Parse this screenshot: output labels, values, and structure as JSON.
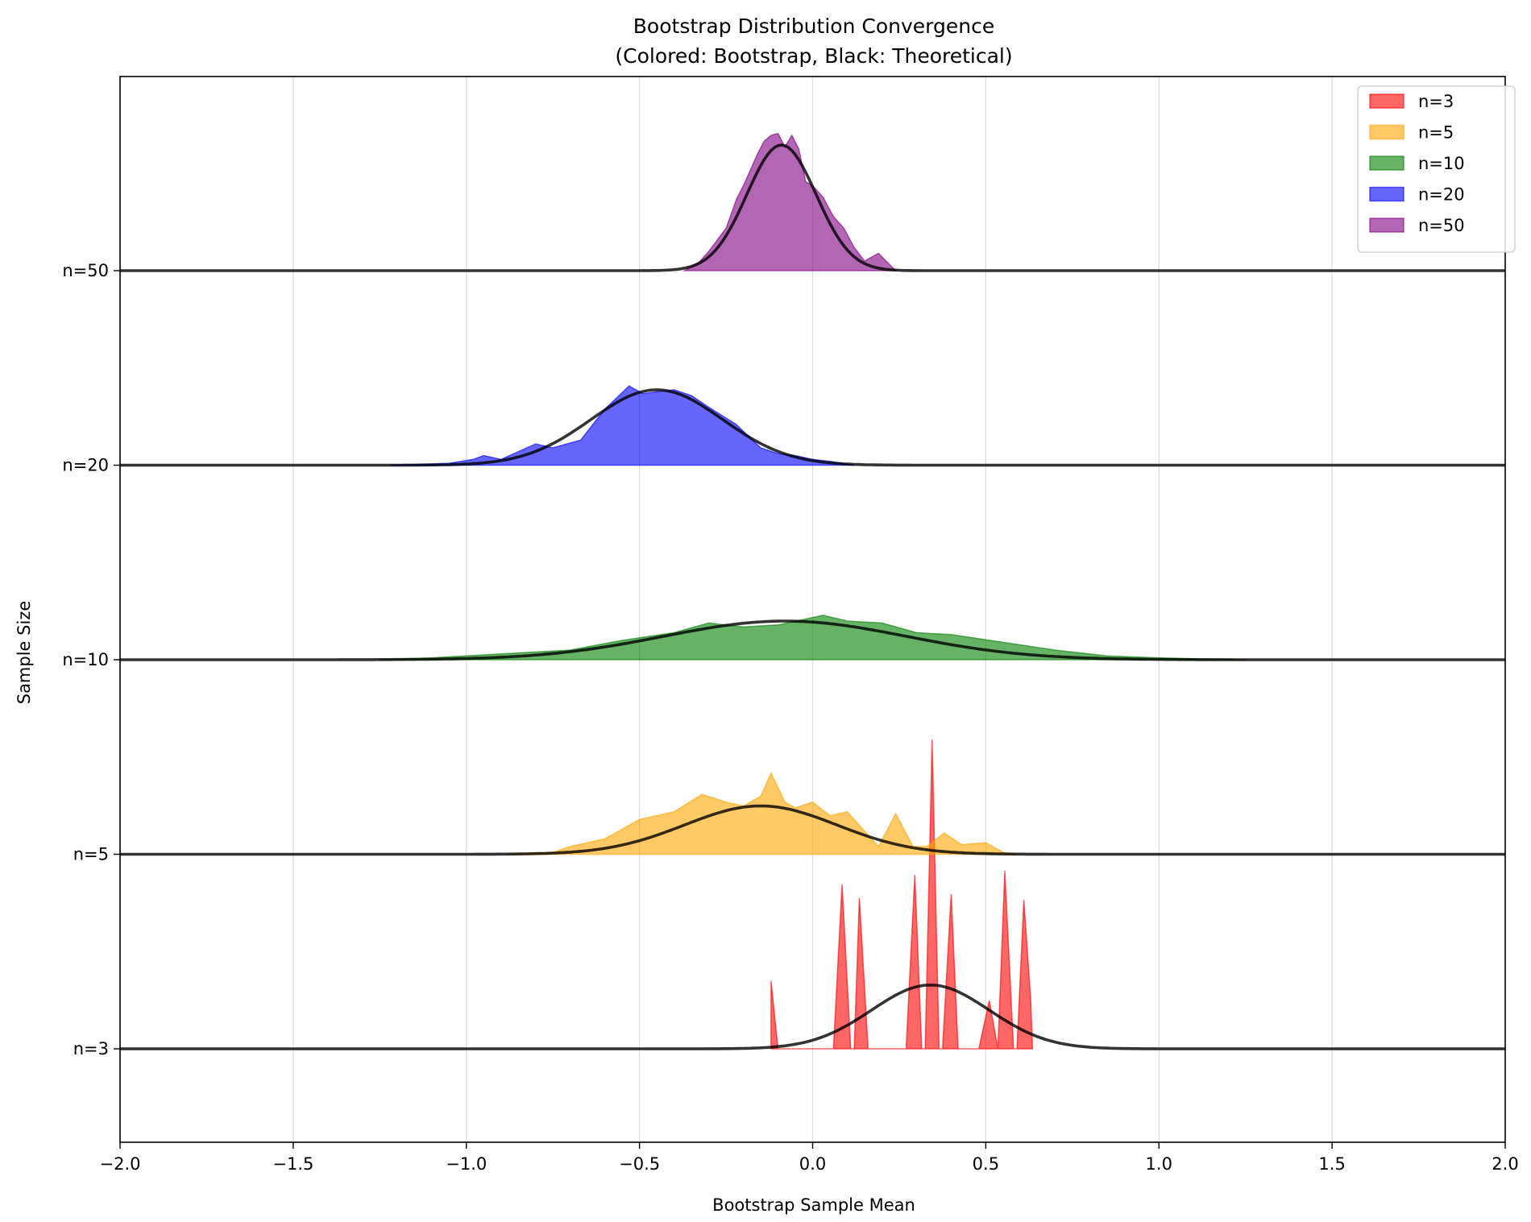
{
  "chart_data": {
    "type": "area",
    "title": "Bootstrap Distribution Convergence",
    "subtitle": "(Colored: Bootstrap, Black: Theoretical)",
    "xlabel": "Bootstrap Sample Mean",
    "ylabel": "Sample Size",
    "xlim": [
      -2.0,
      2.0
    ],
    "x_ticks": [
      "−2.0",
      "−1.5",
      "−1.0",
      "−0.5",
      "0.0",
      "0.5",
      "1.0",
      "1.5",
      "2.0"
    ],
    "x_tick_values": [
      -2.0,
      -1.5,
      -1.0,
      -0.5,
      0.0,
      0.5,
      1.0,
      1.5,
      2.0
    ],
    "y_ticks": [
      "n=3",
      "n=5",
      "n=10",
      "n=20",
      "n=50"
    ],
    "grid": "x only",
    "legend_position": "top-right",
    "series": [
      {
        "name": "n=3",
        "color": "#ff0000",
        "offset": 0,
        "theory_mean": 0.34,
        "theory_peak": 0.33,
        "theory_color": "#000000",
        "x": [
          -0.12,
          -0.1,
          -0.08,
          0.06,
          0.085,
          0.11,
          0.12,
          0.135,
          0.16,
          0.27,
          0.295,
          0.315,
          0.325,
          0.345,
          0.365,
          0.375,
          0.4,
          0.42,
          0.48,
          0.51,
          0.535,
          0.555,
          0.58,
          0.59,
          0.61,
          0.63,
          0.635
        ],
        "y": [
          0.35,
          0.0,
          0.0,
          0.0,
          0.85,
          0.0,
          0.0,
          0.78,
          0.0,
          0.0,
          0.9,
          0.0,
          0.0,
          1.6,
          0.0,
          0.0,
          0.8,
          0.0,
          0.0,
          0.25,
          0.0,
          0.92,
          0.0,
          0.0,
          0.77,
          0.25,
          0.0
        ]
      },
      {
        "name": "n=5",
        "color": "#ffa500",
        "offset": 1,
        "theory_mean": -0.15,
        "theory_peak": 0.25,
        "theory_color": "#000000",
        "x": [
          -0.88,
          -0.75,
          -0.7,
          -0.6,
          -0.5,
          -0.4,
          -0.32,
          -0.25,
          -0.2,
          -0.15,
          -0.12,
          -0.08,
          -0.05,
          0.0,
          0.05,
          0.1,
          0.15,
          0.19,
          0.24,
          0.29,
          0.33,
          0.38,
          0.43,
          0.5,
          0.55,
          0.59
        ],
        "y": [
          0.0,
          0.01,
          0.04,
          0.08,
          0.18,
          0.22,
          0.31,
          0.27,
          0.25,
          0.3,
          0.42,
          0.27,
          0.24,
          0.27,
          0.2,
          0.22,
          0.12,
          0.04,
          0.21,
          0.04,
          0.04,
          0.11,
          0.05,
          0.06,
          0.01,
          0.0
        ]
      },
      {
        "name": "n=10",
        "color": "#008000",
        "offset": 2,
        "theory_mean": -0.08,
        "theory_peak": 0.2,
        "theory_color": "#000000",
        "x": [
          -1.25,
          -1.1,
          -0.9,
          -0.7,
          -0.55,
          -0.4,
          -0.3,
          -0.2,
          -0.1,
          0.03,
          0.1,
          0.2,
          0.3,
          0.4,
          0.55,
          0.7,
          0.85,
          1.0,
          1.15,
          1.25
        ],
        "y": [
          0.0,
          0.01,
          0.03,
          0.05,
          0.1,
          0.14,
          0.19,
          0.17,
          0.18,
          0.23,
          0.2,
          0.19,
          0.14,
          0.13,
          0.09,
          0.05,
          0.02,
          0.01,
          0.003,
          0.0
        ]
      },
      {
        "name": "n=20",
        "color": "#0000ff",
        "offset": 3,
        "theory_mean": -0.45,
        "theory_peak": 0.39,
        "theory_color": "#000000",
        "x": [
          -1.22,
          -1.05,
          -0.98,
          -0.95,
          -0.9,
          -0.8,
          -0.75,
          -0.67,
          -0.6,
          -0.53,
          -0.49,
          -0.45,
          -0.4,
          -0.35,
          -0.3,
          -0.22,
          -0.15,
          -0.1,
          -0.05,
          0.0,
          0.05,
          0.12
        ],
        "y": [
          0.0,
          0.01,
          0.03,
          0.05,
          0.03,
          0.11,
          0.09,
          0.13,
          0.29,
          0.41,
          0.37,
          0.38,
          0.39,
          0.36,
          0.3,
          0.21,
          0.09,
          0.06,
          0.05,
          0.03,
          0.02,
          0.0
        ]
      },
      {
        "name": "n=50",
        "color": "#800080",
        "offset": 4,
        "theory_mean": -0.09,
        "theory_peak": 0.65,
        "theory_color": "#000000",
        "x": [
          -0.37,
          -0.33,
          -0.3,
          -0.25,
          -0.22,
          -0.2,
          -0.16,
          -0.14,
          -0.12,
          -0.1,
          -0.08,
          -0.06,
          -0.04,
          -0.02,
          0.0,
          0.03,
          0.06,
          0.09,
          0.12,
          0.15,
          0.19,
          0.24
        ],
        "y": [
          0.0,
          0.04,
          0.1,
          0.22,
          0.37,
          0.44,
          0.6,
          0.67,
          0.7,
          0.71,
          0.64,
          0.7,
          0.63,
          0.46,
          0.44,
          0.38,
          0.28,
          0.22,
          0.12,
          0.05,
          0.09,
          0.0
        ]
      }
    ]
  }
}
